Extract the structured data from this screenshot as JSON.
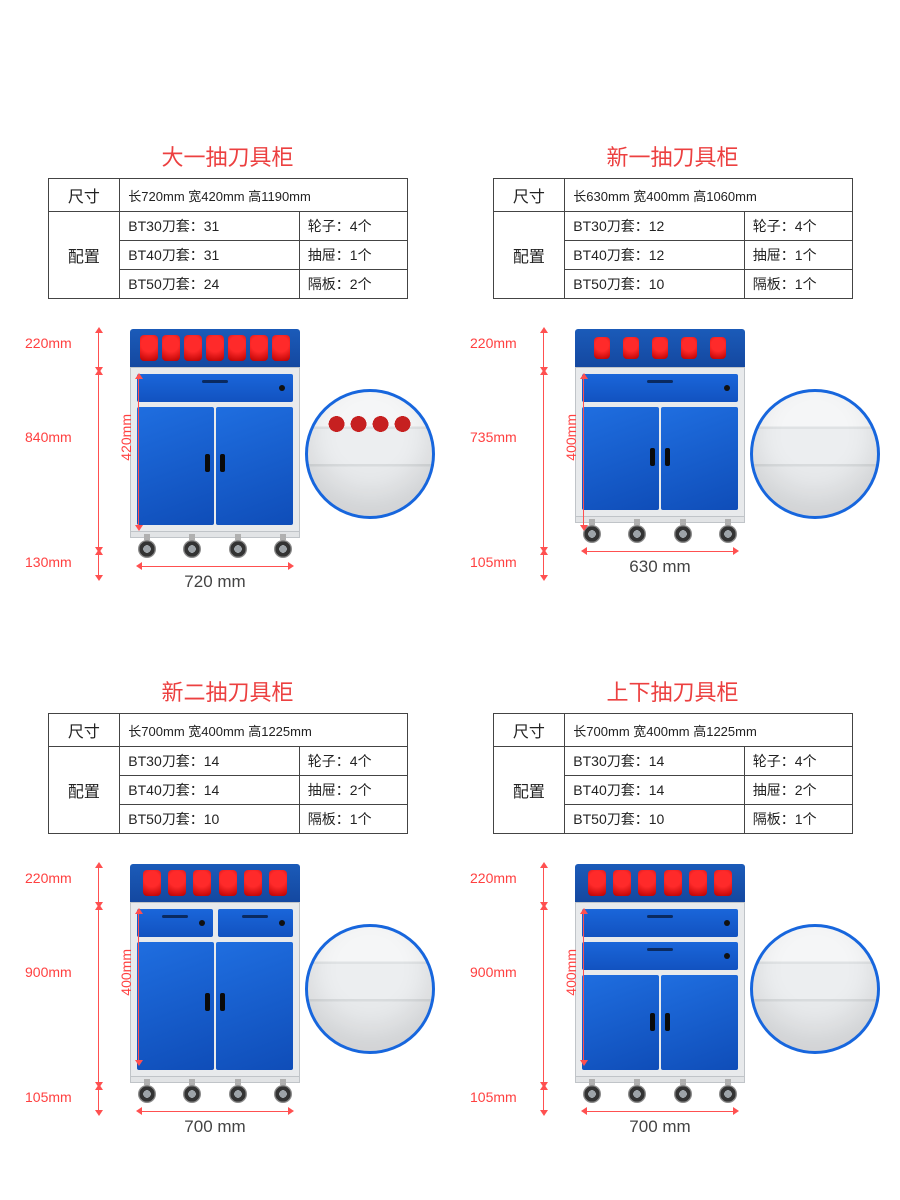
{
  "colors": {
    "title": "#ec4040",
    "dim_text": "#ff4040",
    "dim_line": "#ff5050",
    "table_border": "#444444",
    "cabinet_blue": "#1a66da",
    "cabinet_blue_dark": "#1252c0",
    "cabinet_body": "#e8eaec",
    "holder_red": "#ff2a2a",
    "circle_border": "#1766dd",
    "width_text": "#444444",
    "background": "#ffffff"
  },
  "fonts": {
    "title_size": 22,
    "table_size": 14,
    "dim_size": 14,
    "width_size": 17
  },
  "products": [
    {
      "title": "大一抽刀具柜",
      "size_label": "尺寸",
      "config_label": "配置",
      "dims": "长720mm 宽420mm 高1190mm",
      "bt_rows": [
        {
          "k": "BT30刀套：",
          "v": "31"
        },
        {
          "k": "BT40刀套：",
          "v": "31"
        },
        {
          "k": "BT50刀套：",
          "v": "24"
        }
      ],
      "extras": [
        {
          "k": "轮子：",
          "v": "4个"
        },
        {
          "k": "抽屉：",
          "v": "1个"
        },
        {
          "k": "隔板：",
          "v": "2个"
        }
      ],
      "illus": {
        "left_dims": [
          "220mm",
          "840mm",
          "130mm"
        ],
        "inner_dim": "420mm",
        "width": "720 mm",
        "body_height": 165,
        "drawer_rows": [
          1
        ],
        "holders": 7,
        "inset_tools": true
      }
    },
    {
      "title": "新一抽刀具柜",
      "size_label": "尺寸",
      "config_label": "配置",
      "dims": "长630mm 宽400mm 高1060mm",
      "bt_rows": [
        {
          "k": "BT30刀套：",
          "v": "12"
        },
        {
          "k": "BT40刀套：",
          "v": "12"
        },
        {
          "k": "BT50刀套：",
          "v": "10"
        }
      ],
      "extras": [
        {
          "k": "轮子：",
          "v": "4个"
        },
        {
          "k": "抽屉：",
          "v": "1个"
        },
        {
          "k": "隔板：",
          "v": "1个"
        }
      ],
      "illus": {
        "left_dims": [
          "220mm",
          "735mm",
          "105mm"
        ],
        "inner_dim": "400mm",
        "width": "630 mm",
        "body_height": 150,
        "drawer_rows": [
          1
        ],
        "holders": 5,
        "inset_tools": false
      }
    },
    {
      "title": "新二抽刀具柜",
      "size_label": "尺寸",
      "config_label": "配置",
      "dims": "长700mm 宽400mm 高1225mm",
      "bt_rows": [
        {
          "k": "BT30刀套：",
          "v": "14"
        },
        {
          "k": "BT40刀套：",
          "v": "14"
        },
        {
          "k": "BT50刀套：",
          "v": "10"
        }
      ],
      "extras": [
        {
          "k": "轮子：",
          "v": "4个"
        },
        {
          "k": "抽屉：",
          "v": "2个"
        },
        {
          "k": "隔板：",
          "v": "1个"
        }
      ],
      "illus": {
        "left_dims": [
          "220mm",
          "900mm",
          "105mm"
        ],
        "inner_dim": "400mm",
        "width": "700 mm",
        "body_height": 175,
        "drawer_rows": [
          2
        ],
        "holders": 6,
        "inset_tools": false
      }
    },
    {
      "title": "上下抽刀具柜",
      "size_label": "尺寸",
      "config_label": "配置",
      "dims": "长700mm 宽400mm 高1225mm",
      "bt_rows": [
        {
          "k": "BT30刀套：",
          "v": "14"
        },
        {
          "k": "BT40刀套：",
          "v": "14"
        },
        {
          "k": "BT50刀套：",
          "v": "10"
        }
      ],
      "extras": [
        {
          "k": "轮子：",
          "v": "4个"
        },
        {
          "k": "抽屉：",
          "v": "2个"
        },
        {
          "k": "隔板：",
          "v": "1个"
        }
      ],
      "illus": {
        "left_dims": [
          "220mm",
          "900mm",
          "105mm"
        ],
        "inner_dim": "400mm",
        "width": "700 mm",
        "body_height": 175,
        "drawer_rows": [
          1,
          1
        ],
        "holders": 6,
        "inset_tools": false
      }
    }
  ]
}
